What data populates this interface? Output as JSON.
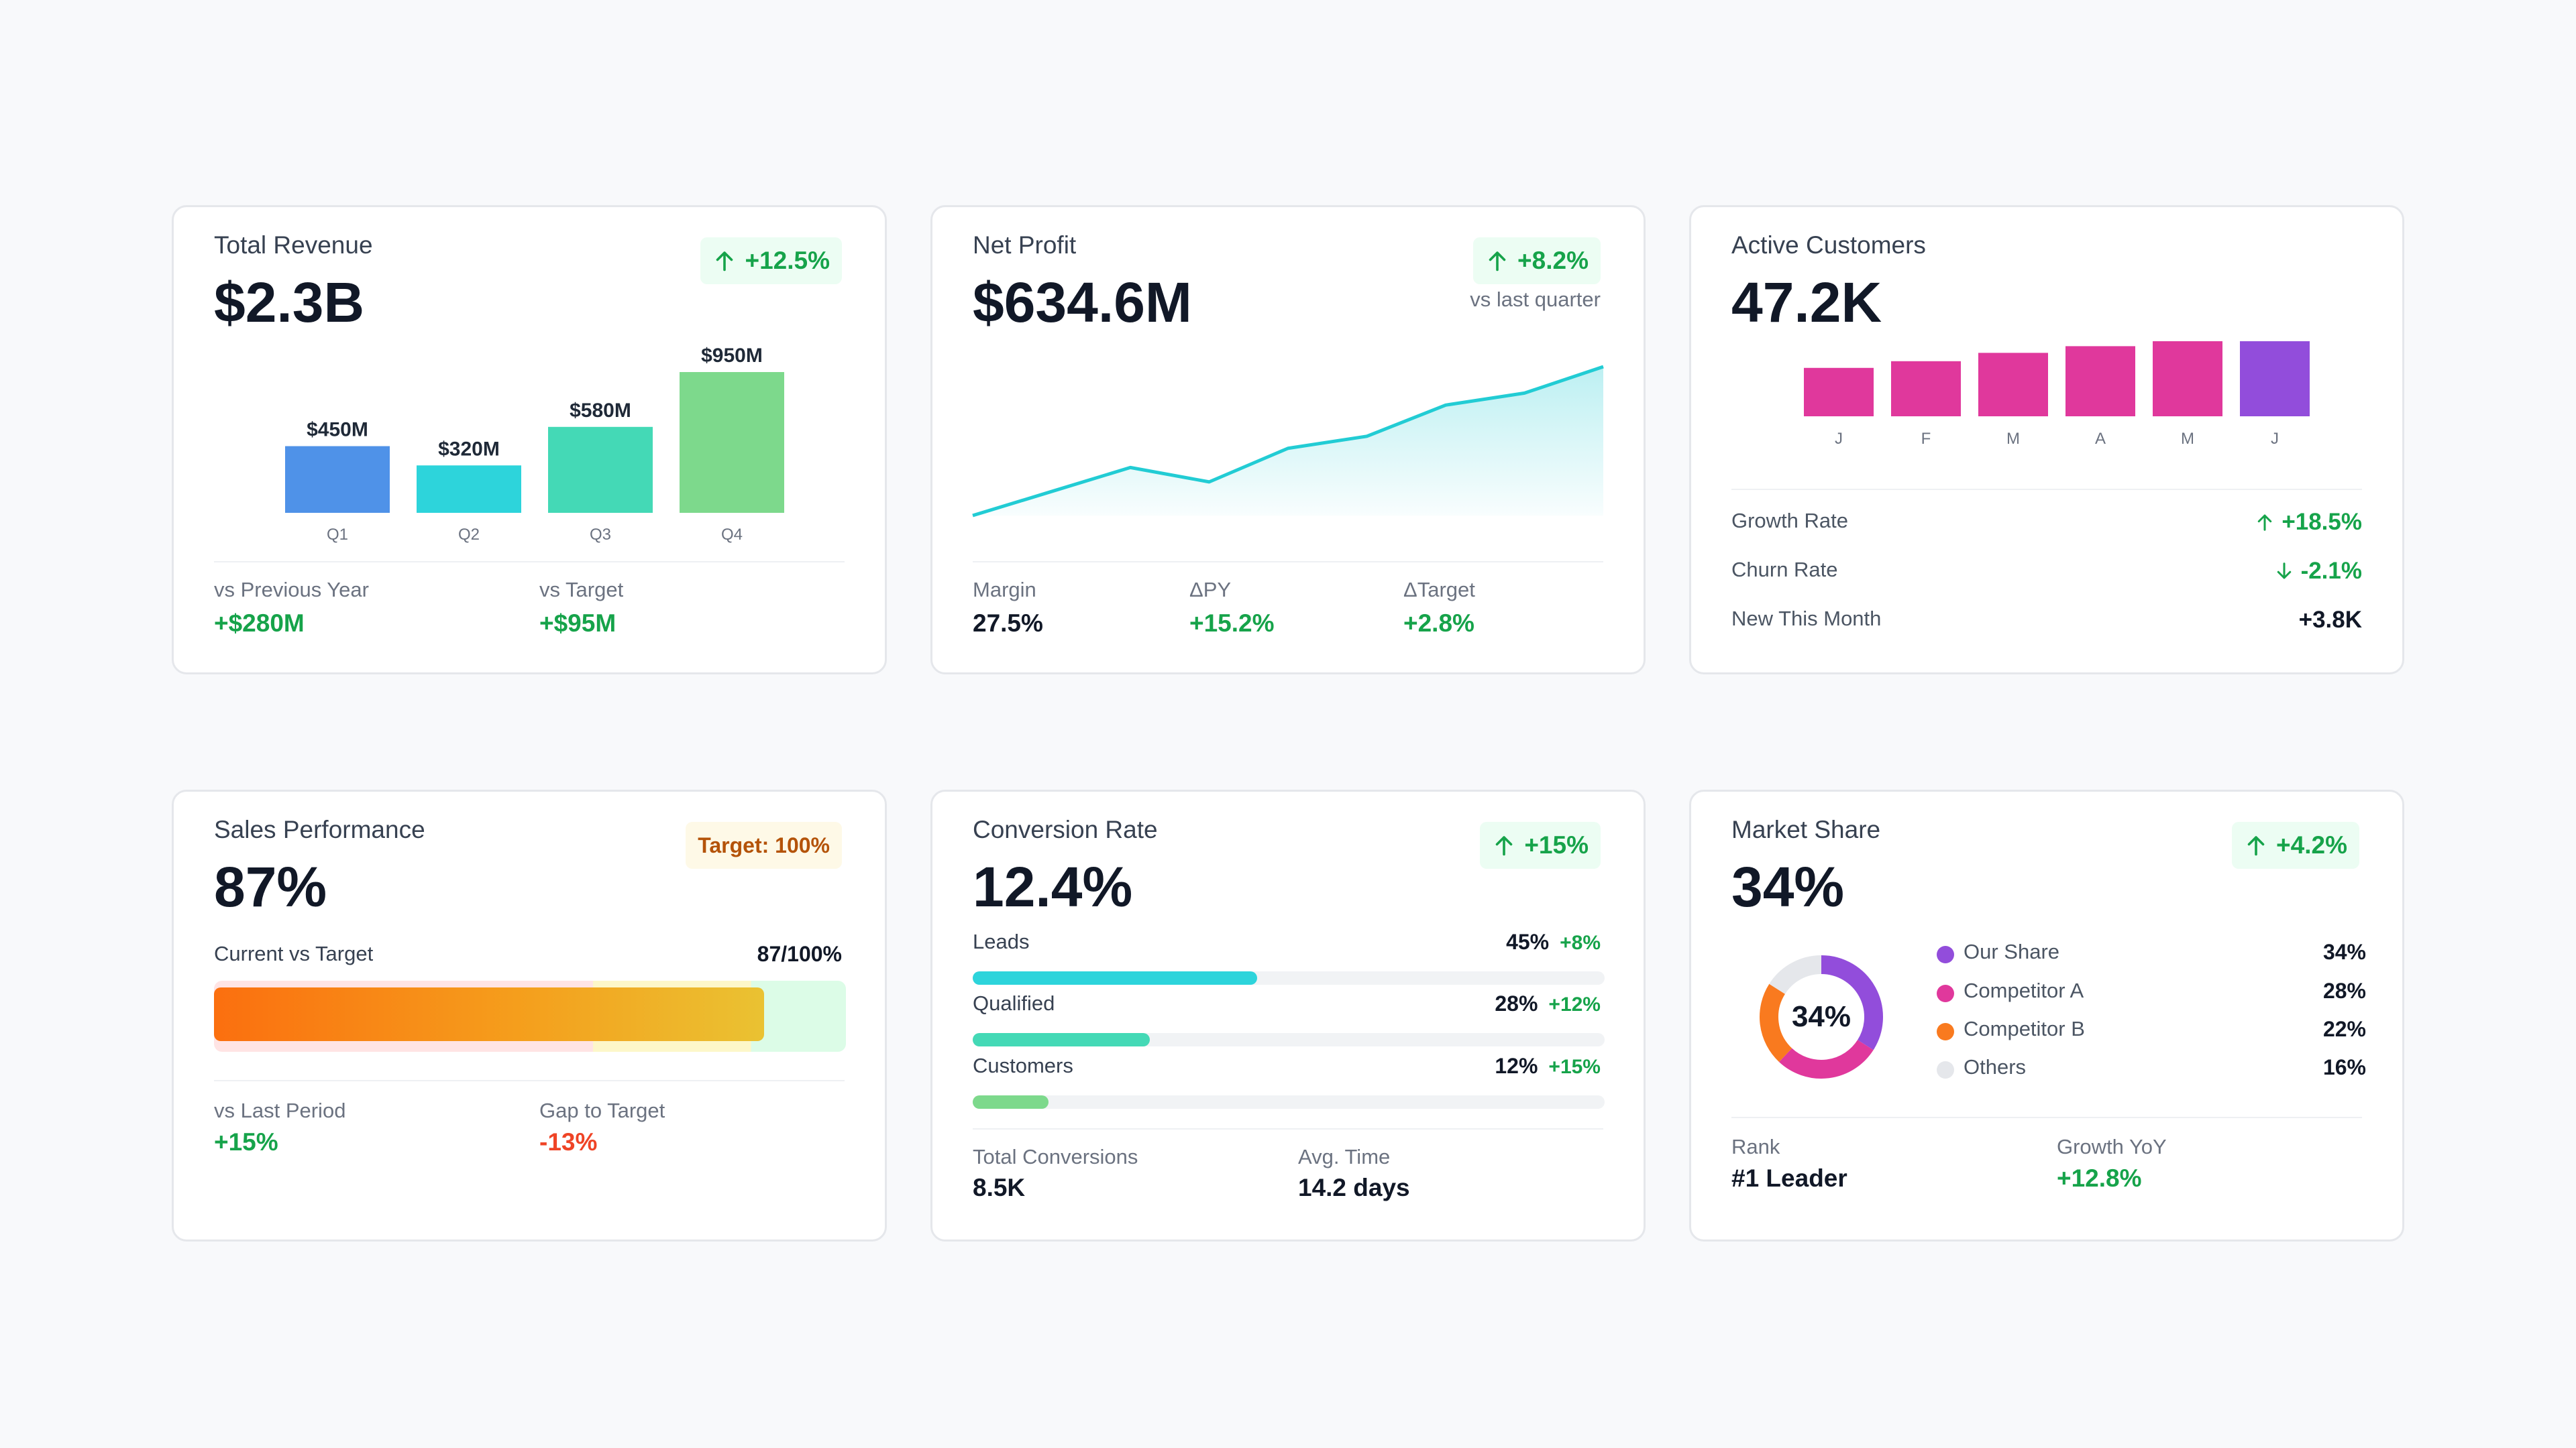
{
  "colors": {
    "green": "#16a34a",
    "red": "#ef4426",
    "blue": "#4f92e8",
    "cyan": "#2dd4db",
    "teal": "#44d9b6",
    "light_green": "#7dd98c",
    "pink": "#e0389c",
    "purple": "#924ddb",
    "orange": "#f97a1f"
  },
  "total_revenue": {
    "title": "Total Revenue",
    "value": "$2.3B",
    "badge": "+12.5%",
    "vs_prev_label": "vs Previous Year",
    "vs_prev_value": "+$280M",
    "vs_target_label": "vs Target",
    "vs_target_value": "+$95M"
  },
  "net_profit": {
    "title": "Net Profit",
    "value": "$634.6M",
    "badge": "+8.2%",
    "badge_sub": "vs last quarter",
    "metrics": [
      {
        "label": "Margin",
        "value": "27.5%"
      },
      {
        "label": "ΔPY",
        "value": "+15.2%"
      },
      {
        "label": "ΔTarget",
        "value": "+2.8%"
      }
    ]
  },
  "active_customers": {
    "title": "Active Customers",
    "value": "47.2K",
    "rows": [
      {
        "label": "Growth Rate",
        "value": "+18.5%"
      },
      {
        "label": "Churn Rate",
        "value": "-2.1%"
      },
      {
        "label": "New This Month",
        "value": "+3.8K"
      }
    ]
  },
  "sales_performance": {
    "title": "Sales Performance",
    "value": "87%",
    "badge": "Target: 100%",
    "bar_label": "Current vs Target",
    "bar_value_text": "87/100%",
    "progress": 0.87,
    "vs_last_label": "vs Last Period",
    "vs_last_value": "+15%",
    "gap_label": "Gap to Target",
    "gap_value": "-13%"
  },
  "conversion_rate": {
    "title": "Conversion Rate",
    "value": "12.4%",
    "badge": "+15%",
    "funnel": [
      {
        "label": "Leads",
        "pct": "45%",
        "delta": "+8%",
        "fraction": 0.45,
        "color": "#2dd4db"
      },
      {
        "label": "Qualified",
        "pct": "28%",
        "delta": "+12%",
        "fraction": 0.28,
        "color": "#44d9b6"
      },
      {
        "label": "Customers",
        "pct": "12%",
        "delta": "+15%",
        "fraction": 0.12,
        "color": "#7dd98c"
      }
    ],
    "total_label": "Total Conversions",
    "total_value": "8.5K",
    "avg_label": "Avg. Time",
    "avg_value": "14.2 days"
  },
  "market_share": {
    "title": "Market Share",
    "value": "34%",
    "badge": "+4.2%",
    "donut_center": "34%",
    "legend": [
      {
        "label": "Our Share",
        "value": "34%",
        "color": "#924ddb"
      },
      {
        "label": "Competitor A",
        "value": "28%",
        "color": "#e0389c"
      },
      {
        "label": "Competitor B",
        "value": "22%",
        "color": "#f97a1f"
      },
      {
        "label": "Others",
        "value": "16%",
        "color": "#e5e7eb"
      }
    ],
    "rank_label": "Rank",
    "rank_value": "#1 Leader",
    "growth_label": "Growth YoY",
    "growth_value": "+12.8%"
  },
  "chart_data": [
    {
      "type": "bar",
      "categories": [
        "Q1",
        "Q2",
        "Q3",
        "Q4"
      ],
      "values": [
        450,
        320,
        580,
        950
      ],
      "data_labels": [
        "$450M",
        "$320M",
        "$580M",
        "$950M"
      ],
      "colors": [
        "#4f92e8",
        "#2dd4db",
        "#44d9b6",
        "#7dd98c"
      ],
      "ylim": [
        0,
        950
      ]
    },
    {
      "type": "area",
      "y": [
        0,
        10,
        20,
        14,
        28,
        33,
        46,
        51,
        62
      ],
      "ylim": [
        0,
        62
      ],
      "color": "#22ccd4"
    },
    {
      "type": "bar",
      "categories": [
        "J",
        "F",
        "M",
        "A",
        "M",
        "J"
      ],
      "values": [
        29,
        33,
        38,
        42,
        48,
        53
      ],
      "colors": [
        "#e0389c",
        "#e0389c",
        "#e0389c",
        "#e0389c",
        "#e0389c",
        "#924ddb"
      ],
      "ylim": [
        0,
        53
      ]
    },
    {
      "type": "pie",
      "categories": [
        "Our Share",
        "Competitor A",
        "Competitor B",
        "Others"
      ],
      "values": [
        34,
        28,
        22,
        16
      ],
      "colors": [
        "#924ddb",
        "#e0389c",
        "#f97a1f",
        "#e5e7eb"
      ]
    }
  ]
}
